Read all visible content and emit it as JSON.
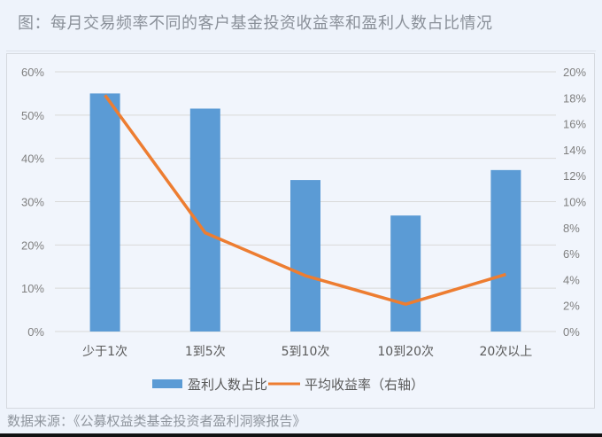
{
  "title": "图：每月交易频率不同的客户基金投资收益率和盈利人数占比情况",
  "source": "数据来源：《公募权益类基金投资者盈利洞察报告》",
  "colors": {
    "bar": "#5b9bd5",
    "line": "#ed7d31",
    "grid": "#d9d9d9",
    "axis_text": "#7f7f7f"
  },
  "legend": [
    {
      "label": "盈利人数占比",
      "type": "bar",
      "color": "#5b9bd5"
    },
    {
      "label": "平均收益率（右轴）",
      "type": "line",
      "color": "#ed7d31"
    }
  ],
  "chart_data": {
    "type": "bar+line",
    "title": "每月交易频率不同的客户基金投资收益率和盈利人数占比情况",
    "categories": [
      "少于1次",
      "1到5次",
      "5到10次",
      "10到20次",
      "20次以上"
    ],
    "series": [
      {
        "name": "盈利人数占比",
        "type": "bar",
        "axis": "left",
        "values": [
          55.0,
          51.5,
          35.0,
          26.8,
          37.3
        ]
      },
      {
        "name": "平均收益率（右轴）",
        "type": "line",
        "axis": "right",
        "values": [
          18.2,
          7.6,
          4.3,
          2.1,
          4.4
        ]
      }
    ],
    "y_left": {
      "ticks": [
        "0%",
        "10%",
        "20%",
        "30%",
        "40%",
        "50%",
        "60%"
      ],
      "range": [
        0,
        60
      ]
    },
    "y_right": {
      "ticks": [
        "0%",
        "2%",
        "4%",
        "6%",
        "8%",
        "10%",
        "12%",
        "14%",
        "16%",
        "18%",
        "20%"
      ],
      "range": [
        0,
        20
      ]
    },
    "grid": true,
    "legend_position": "bottom"
  }
}
